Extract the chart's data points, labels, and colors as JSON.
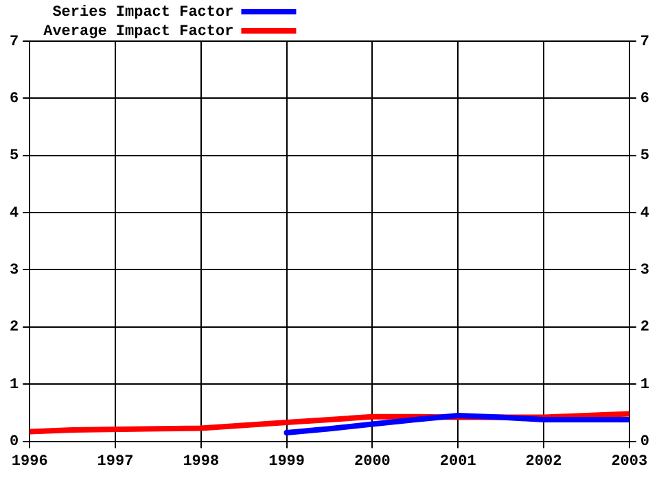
{
  "chart_data": {
    "type": "line",
    "xlim": [
      1996,
      2003
    ],
    "xticks": [
      1996,
      1997,
      1998,
      1999,
      2000,
      2001,
      2002,
      2003
    ],
    "ylim": [
      0,
      7
    ],
    "yticks": [
      0,
      1,
      2,
      3,
      4,
      5,
      6,
      7
    ],
    "y2lim": [
      0,
      7
    ],
    "y2ticks": [
      0,
      1,
      2,
      3,
      4,
      5,
      6,
      7
    ],
    "grid": true,
    "legend": "top left",
    "line_style": "solid",
    "marker": "none",
    "series": [
      {
        "name": "Series Impact Factor",
        "color": "#0000ff",
        "x": [
          1999,
          1999.5,
          2000,
          2000.5,
          2001,
          2001.5,
          2002,
          2003
        ],
        "values": [
          0.15,
          0.22,
          0.3,
          0.38,
          0.45,
          0.42,
          0.38,
          0.38
        ]
      },
      {
        "name": "Average Impact Factor",
        "color": "#ff0000",
        "x": [
          1996,
          1996.5,
          1997.5,
          1998,
          1998.5,
          1999,
          1999.5,
          2000,
          2000.5,
          2001,
          2002,
          2002.5,
          2003
        ],
        "values": [
          0.17,
          0.2,
          0.22,
          0.23,
          0.28,
          0.33,
          0.38,
          0.43,
          0.43,
          0.42,
          0.42,
          0.45,
          0.48
        ]
      }
    ]
  }
}
